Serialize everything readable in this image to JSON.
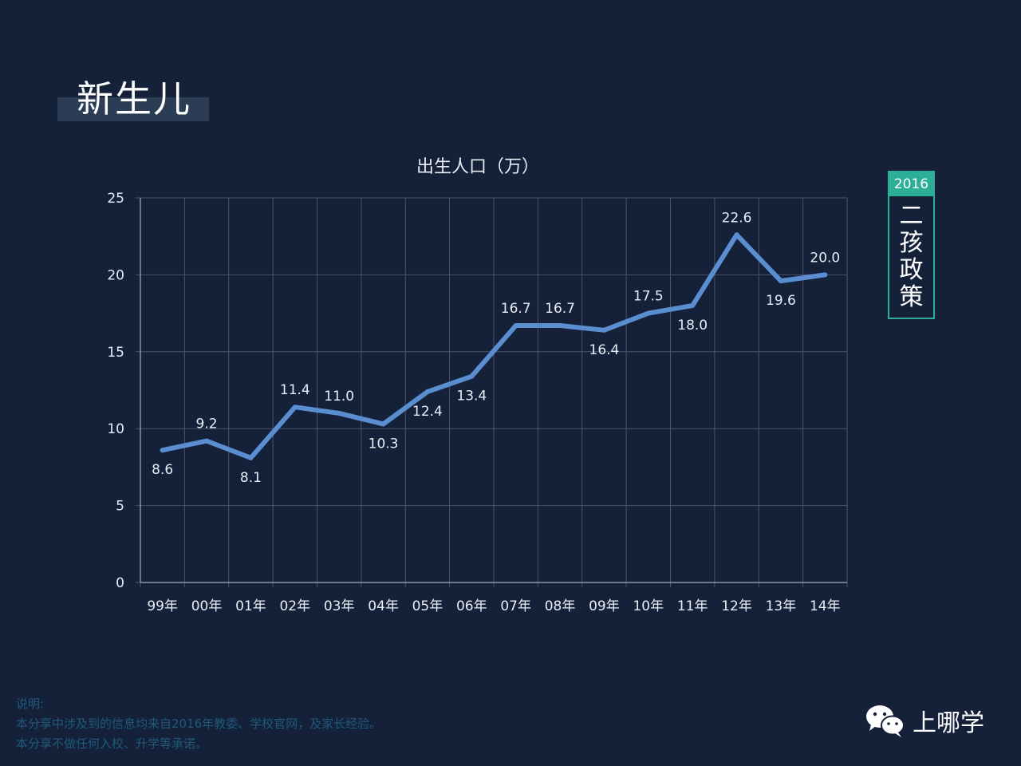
{
  "page": {
    "title": "新生儿"
  },
  "policy_badge": {
    "year": "2016",
    "text": "二\n孩\n政\n策"
  },
  "notes": {
    "heading": "说明:",
    "line1": "本分享中涉及到的信息均来自2016年教委、学校官网，及家长经验。",
    "line2": "本分享不做任何入校、升学等承诺。"
  },
  "brand": {
    "name": "上哪学",
    "icon": "wechat-icon"
  },
  "colors": {
    "background": "#152039",
    "line": "#5b8ed0",
    "grid": "#4a5568",
    "accent": "#2cae97"
  },
  "chart_data": {
    "type": "line",
    "title": "出生人口（万）",
    "categories": [
      "99年",
      "00年",
      "01年",
      "02年",
      "03年",
      "04年",
      "05年",
      "06年",
      "07年",
      "08年",
      "09年",
      "10年",
      "11年",
      "12年",
      "13年",
      "14年"
    ],
    "values": [
      8.6,
      9.2,
      8.1,
      11.4,
      11.0,
      10.3,
      12.4,
      13.4,
      16.7,
      16.7,
      16.4,
      17.5,
      18.0,
      22.6,
      19.6,
      20.0
    ],
    "value_labels": [
      "8.6",
      "9.2",
      "8.1",
      "11.4",
      "11.0",
      "10.3",
      "12.4",
      "13.4",
      "16.7",
      "16.7",
      "16.4",
      "17.5",
      "18.0",
      "22.6",
      "19.6",
      "20.0"
    ],
    "label_position": [
      "below",
      "above",
      "below",
      "above",
      "above",
      "below",
      "below",
      "below",
      "above",
      "above",
      "below",
      "above",
      "below",
      "above",
      "below",
      "above"
    ],
    "ylim": [
      0,
      25
    ],
    "yticks": [
      "0",
      "5",
      "10",
      "15",
      "20",
      "25"
    ],
    "grid": true,
    "xlabel": "",
    "ylabel": ""
  }
}
